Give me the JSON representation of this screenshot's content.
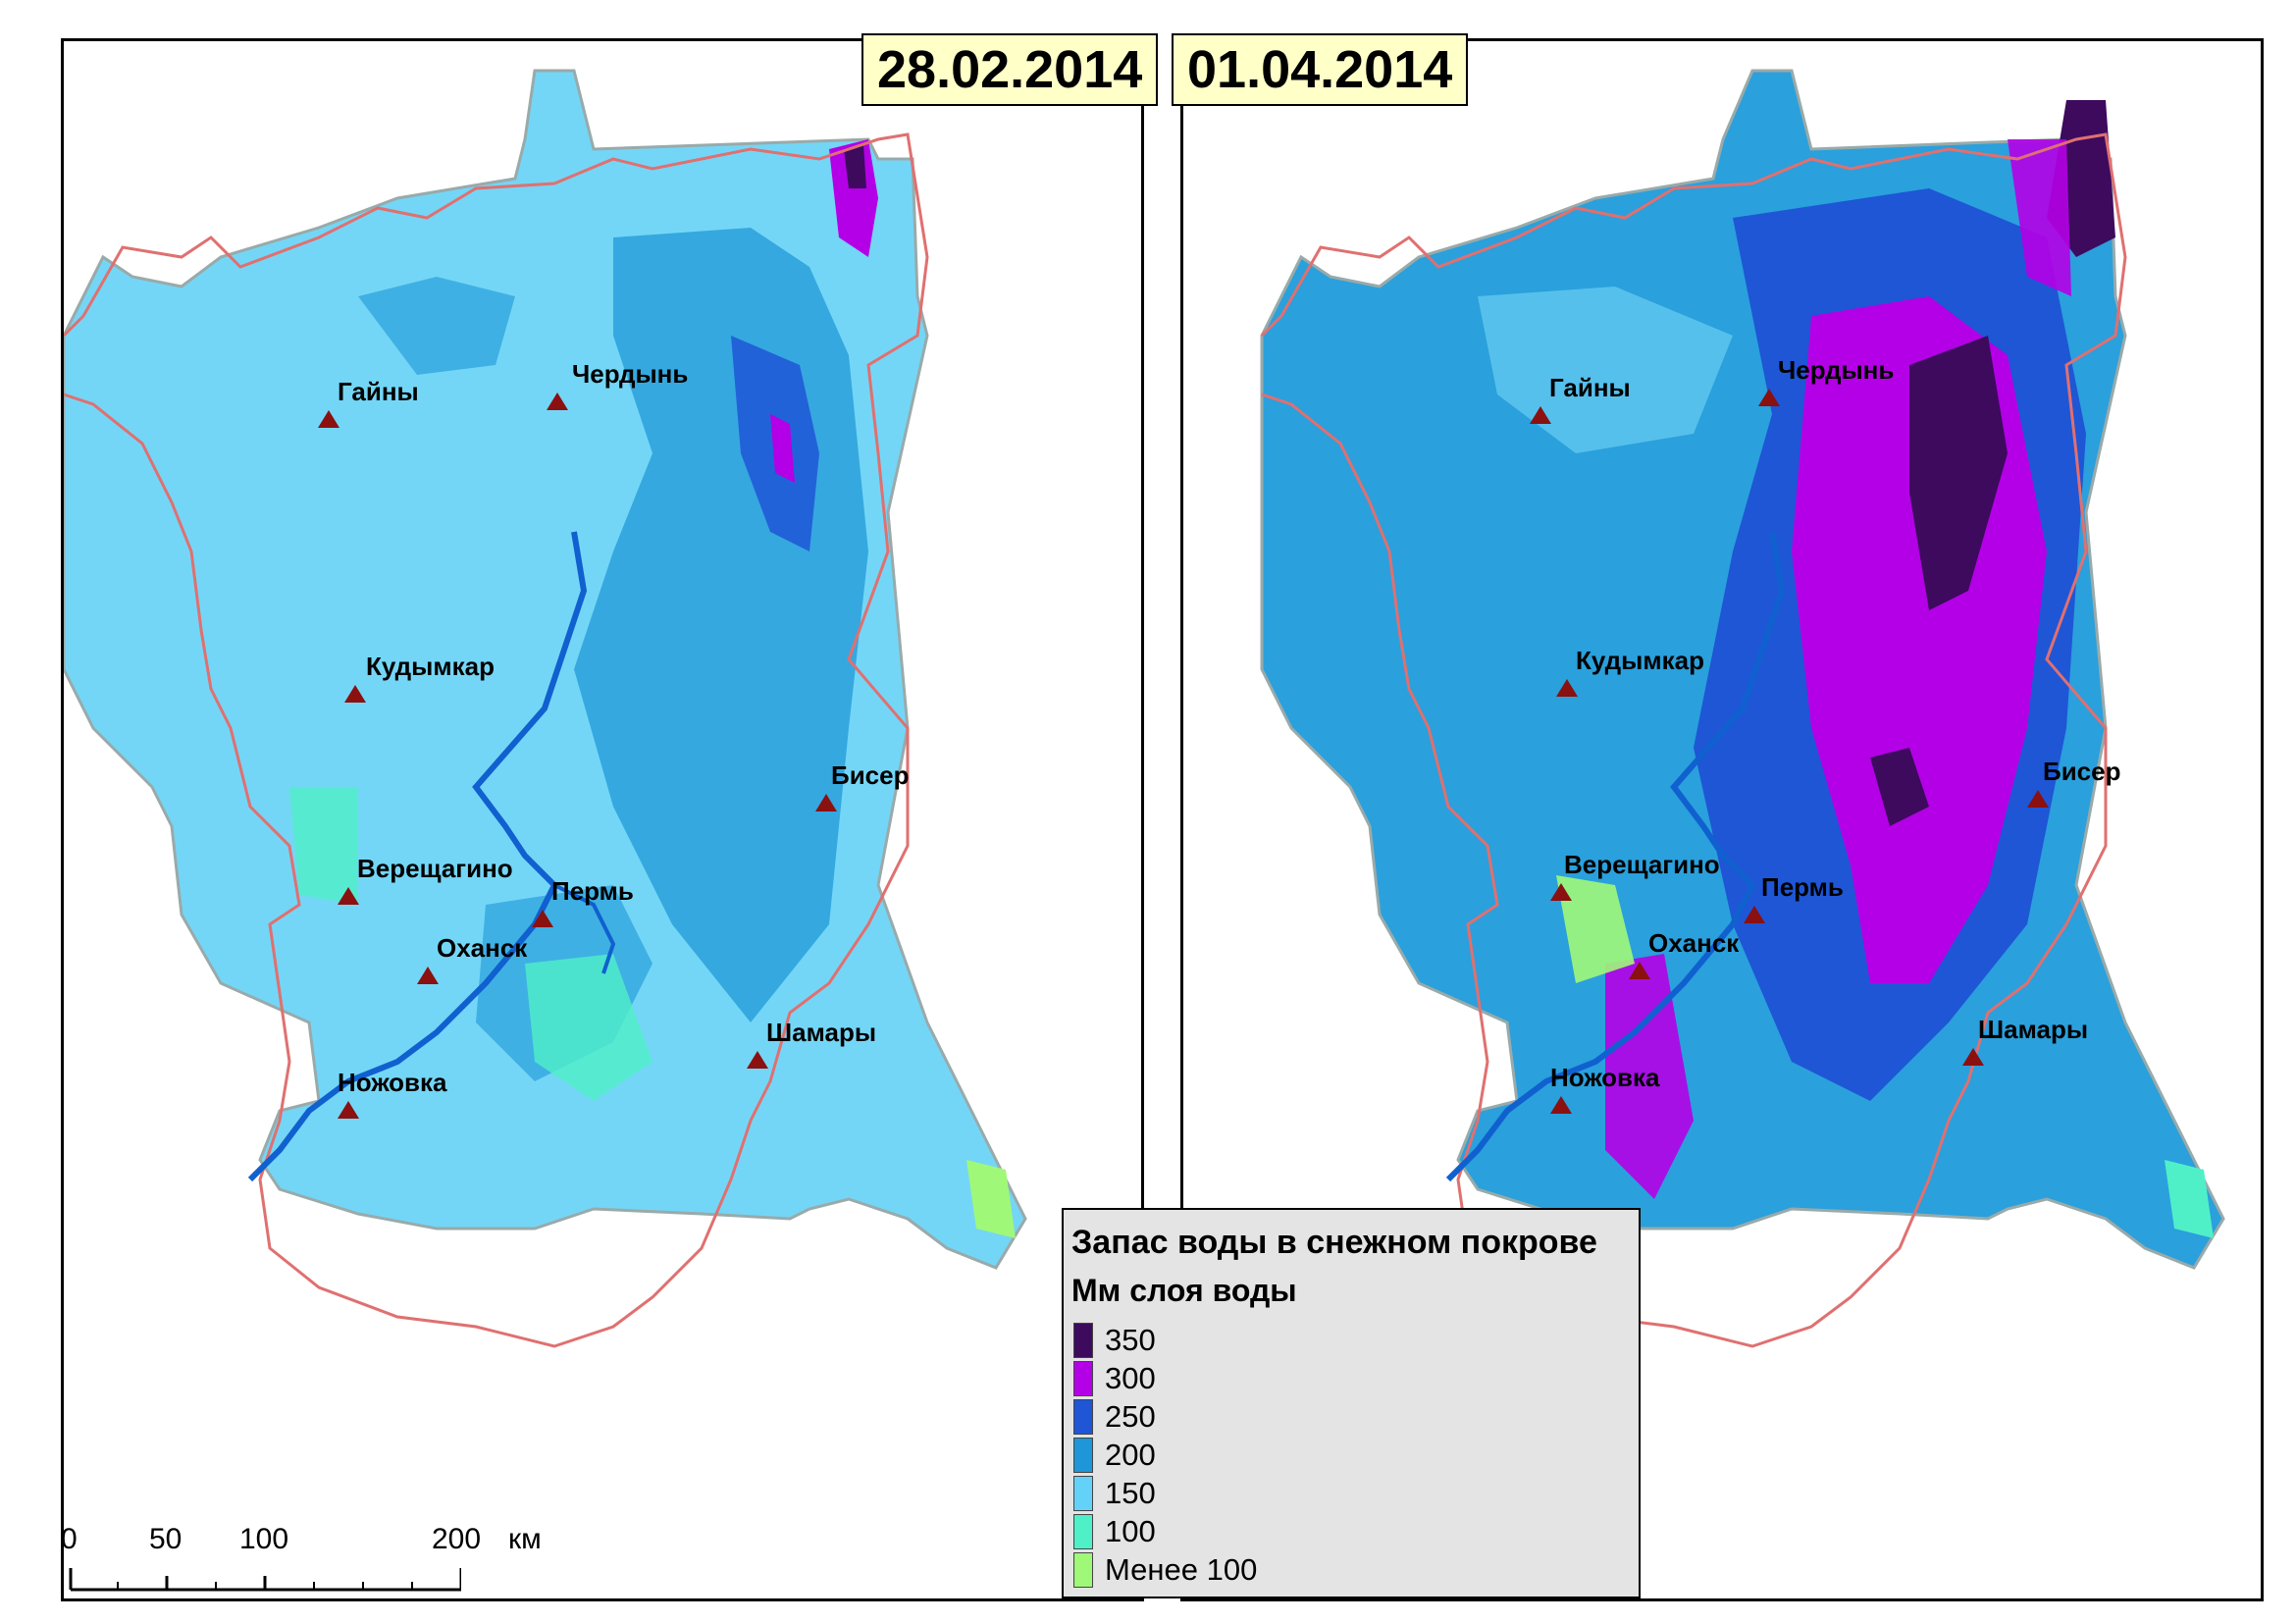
{
  "dates": {
    "left": "28.02.2014",
    "right": "01.04.2014"
  },
  "cities": [
    {
      "id": "gainy",
      "name": "Гайны"
    },
    {
      "id": "cherdyn",
      "name": "Чердынь"
    },
    {
      "id": "kudymkar",
      "name": "Кудымкар"
    },
    {
      "id": "biser",
      "name": "Бисер"
    },
    {
      "id": "vereshchagino",
      "name": "Верещагино"
    },
    {
      "id": "perm",
      "name": "Пермь"
    },
    {
      "id": "okhansk",
      "name": "Оханск"
    },
    {
      "id": "nozhovka",
      "name": "Ножовка"
    },
    {
      "id": "shamary",
      "name": "Шамары"
    }
  ],
  "legend": {
    "title": "Запас воды в снежном покрове",
    "unit": "Мм слоя воды",
    "items": [
      {
        "label": "350",
        "color": "#3d0a5e"
      },
      {
        "label": "300",
        "color": "#b400e6"
      },
      {
        "label": "250",
        "color": "#1e56d6"
      },
      {
        "label": "200",
        "color": "#1e96d8"
      },
      {
        "label": "150",
        "color": "#64d2f8"
      },
      {
        "label": "100",
        "color": "#4ff0c8"
      },
      {
        "label": "Менее 100",
        "color": "#a0f878"
      }
    ]
  },
  "scale": {
    "labels": [
      "0",
      "50",
      "100",
      "200"
    ],
    "unit": "км"
  },
  "colors": {
    "region_border": "#e07070",
    "river": "#1060d0",
    "city_marker": "#8b1010"
  }
}
